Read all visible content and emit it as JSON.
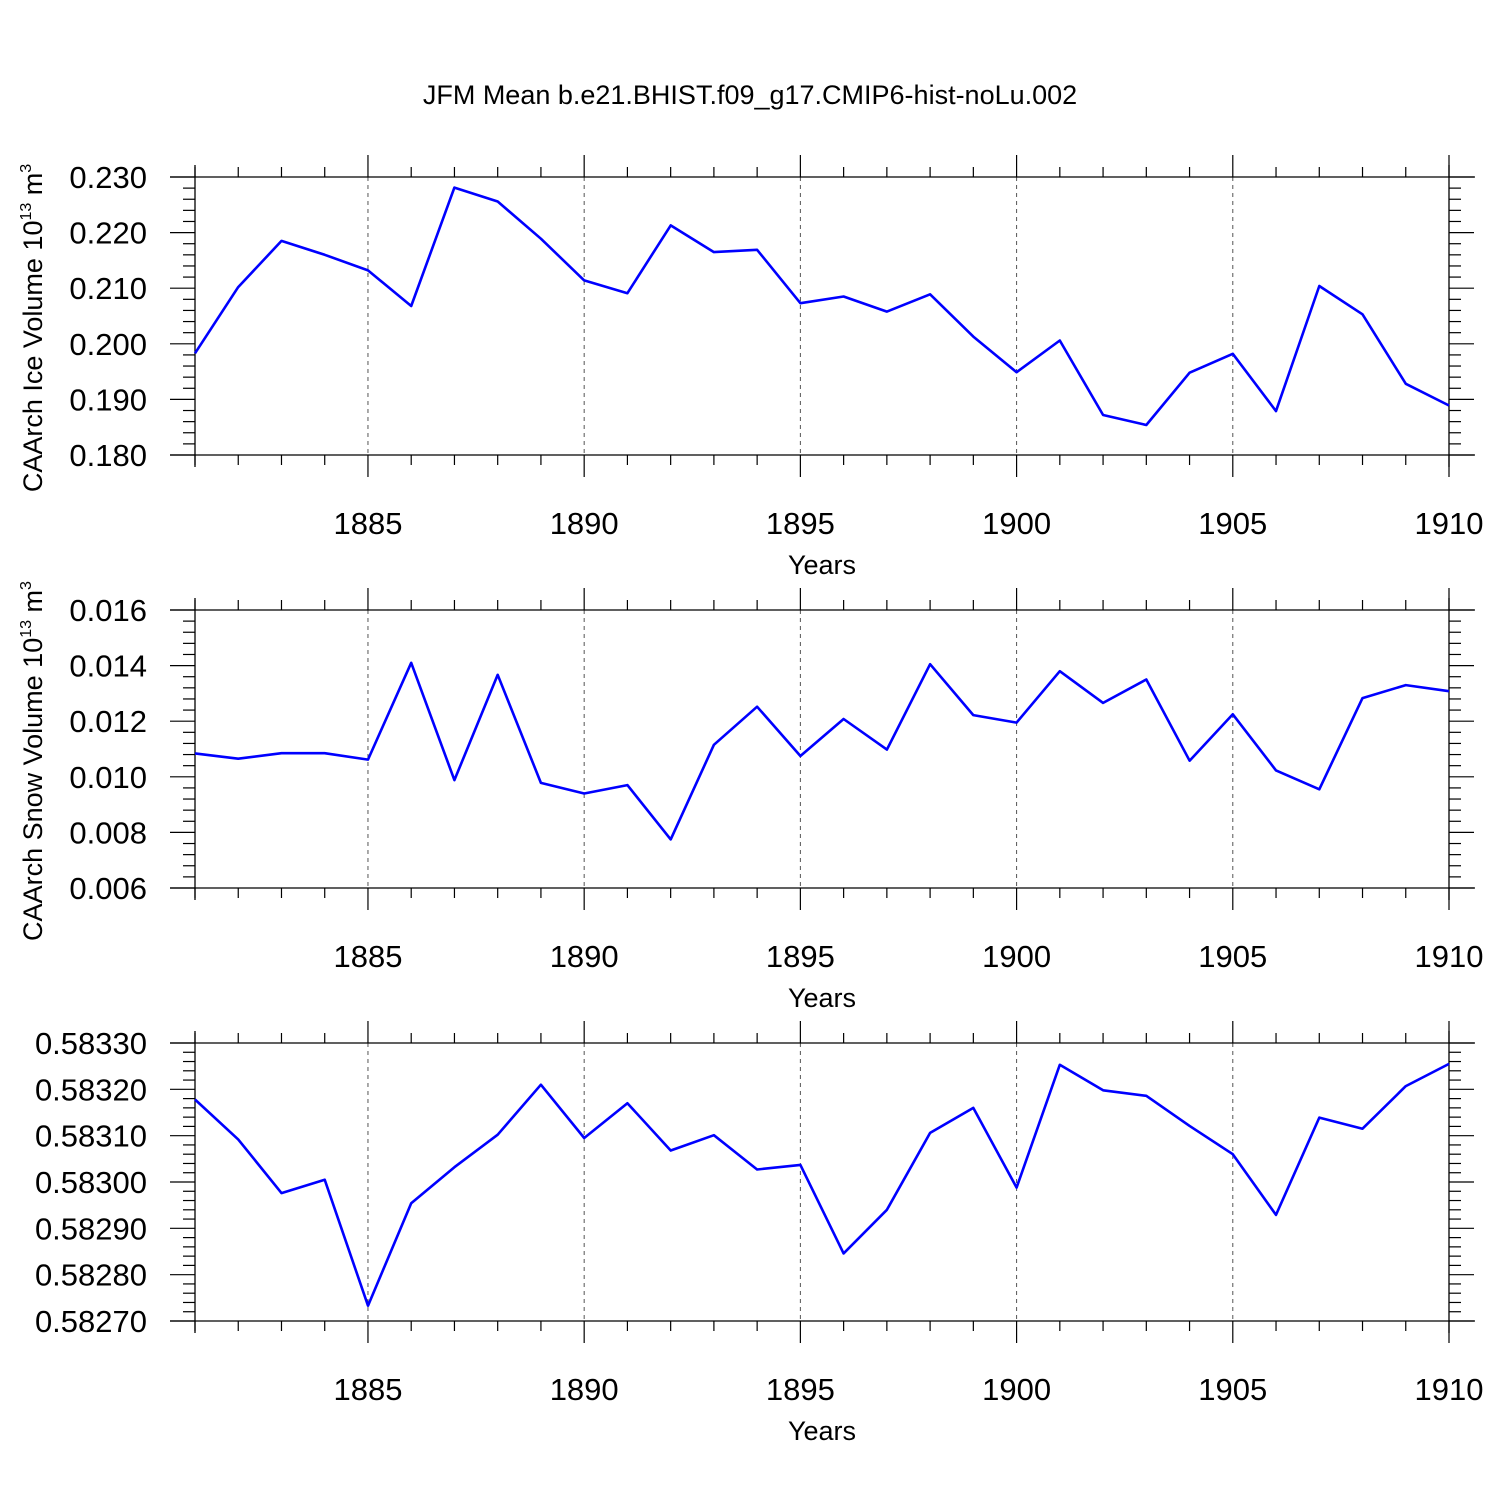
{
  "title": "JFM Mean b.e21.BHIST.f09_g17.CMIP6-hist-noLu.002",
  "chart_data": [
    {
      "type": "line",
      "xlabel": "Years",
      "ylabel": "CAArch Ice Volume 10",
      "ylabel_exp": "13",
      "ylabel_unit": "m",
      "ylabel_unit_exp": "3",
      "xlim": [
        1881,
        1910
      ],
      "ylim": [
        0.18,
        0.23
      ],
      "xticks": [
        1885,
        1890,
        1895,
        1900,
        1905,
        1910
      ],
      "yticks": [
        "0.180",
        "0.190",
        "0.200",
        "0.210",
        "0.220",
        "0.230"
      ],
      "grid": "vertical dashed at major x ticks",
      "color": "#0000ff",
      "x": [
        1881,
        1882,
        1883,
        1884,
        1885,
        1886,
        1887,
        1888,
        1889,
        1890,
        1891,
        1892,
        1893,
        1894,
        1895,
        1896,
        1897,
        1898,
        1899,
        1900,
        1901,
        1902,
        1903,
        1904,
        1905,
        1906,
        1907,
        1908,
        1909,
        1910
      ],
      "y": [
        0.1983,
        0.2102,
        0.2185,
        0.216,
        0.2132,
        0.2068,
        0.2281,
        0.2256,
        0.2189,
        0.2114,
        0.2091,
        0.2213,
        0.2165,
        0.2169,
        0.2073,
        0.2085,
        0.2058,
        0.2089,
        0.2013,
        0.1949,
        0.2006,
        0.1872,
        0.1854,
        0.1948,
        0.1982,
        0.1879,
        0.2104,
        0.2053,
        0.1928,
        0.1889
      ]
    },
    {
      "type": "line",
      "xlabel": "Years",
      "ylabel": "CAArch Snow Volume 10",
      "ylabel_exp": "13",
      "ylabel_unit": "m",
      "ylabel_unit_exp": "3",
      "xlim": [
        1881,
        1910
      ],
      "ylim": [
        0.006,
        0.016
      ],
      "xticks": [
        1885,
        1890,
        1895,
        1900,
        1905,
        1910
      ],
      "yticks": [
        "0.006",
        "0.008",
        "0.010",
        "0.012",
        "0.014",
        "0.016"
      ],
      "grid": "vertical dashed at major x ticks",
      "color": "#0000ff",
      "x": [
        1881,
        1882,
        1883,
        1884,
        1885,
        1886,
        1887,
        1888,
        1889,
        1890,
        1891,
        1892,
        1893,
        1894,
        1895,
        1896,
        1897,
        1898,
        1899,
        1900,
        1901,
        1902,
        1903,
        1904,
        1905,
        1906,
        1907,
        1908,
        1909,
        1910
      ],
      "y": [
        0.01084,
        0.01065,
        0.01085,
        0.01085,
        0.01062,
        0.0141,
        0.00988,
        0.01367,
        0.00978,
        0.0094,
        0.0097,
        0.00775,
        0.01115,
        0.01252,
        0.01075,
        0.01208,
        0.01098,
        0.01405,
        0.01222,
        0.01195,
        0.0138,
        0.01266,
        0.0135,
        0.01058,
        0.01225,
        0.01023,
        0.00955,
        0.01283,
        0.0133,
        0.01308
      ]
    },
    {
      "type": "line",
      "xlabel": "Years",
      "ylabel": "",
      "xlim": [
        1881,
        1910
      ],
      "ylim": [
        0.5827,
        0.5833
      ],
      "xticks": [
        1885,
        1890,
        1895,
        1900,
        1905,
        1910
      ],
      "yticks": [
        "0.58270",
        "0.58280",
        "0.58290",
        "0.58300",
        "0.58310",
        "0.58320",
        "0.58330"
      ],
      "grid": "vertical dashed at major x ticks",
      "color": "#0000ff",
      "x": [
        1881,
        1882,
        1883,
        1884,
        1885,
        1886,
        1887,
        1888,
        1889,
        1890,
        1891,
        1892,
        1893,
        1894,
        1895,
        1896,
        1897,
        1898,
        1899,
        1900,
        1901,
        1902,
        1903,
        1904,
        1905,
        1906,
        1907,
        1908,
        1909,
        1910
      ],
      "y": [
        0.583178,
        0.583092,
        0.582976,
        0.583005,
        0.582733,
        0.582954,
        0.583032,
        0.583102,
        0.58321,
        0.583095,
        0.58317,
        0.583068,
        0.583101,
        0.583027,
        0.583037,
        0.582846,
        0.58294,
        0.583106,
        0.58316,
        0.582988,
        0.583253,
        0.583198,
        0.583186,
        0.583121,
        0.58306,
        0.582929,
        0.583139,
        0.583115,
        0.583207,
        0.583255
      ]
    }
  ]
}
